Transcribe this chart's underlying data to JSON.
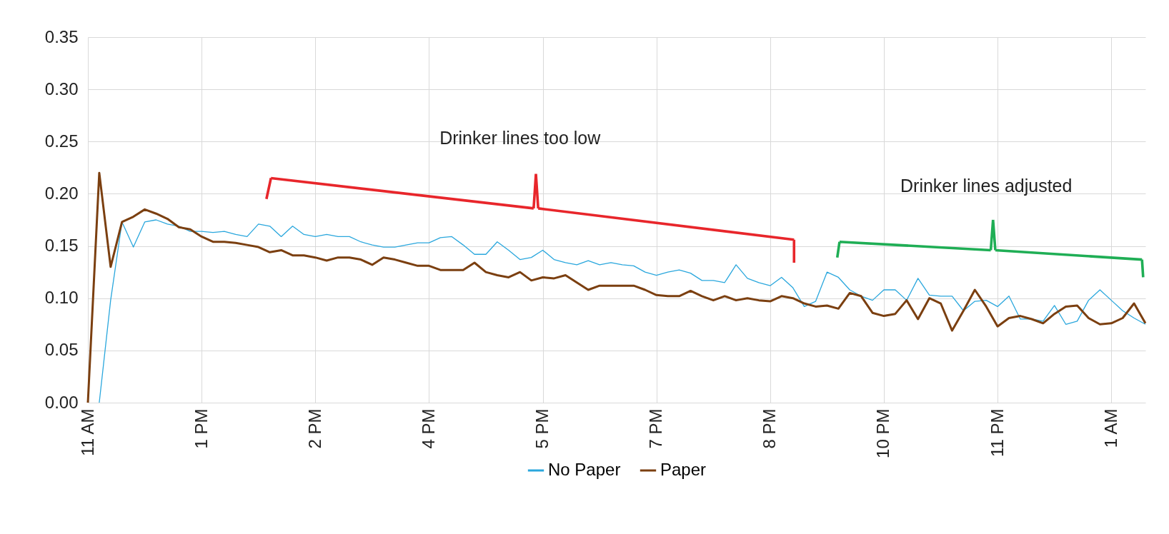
{
  "chart_data": {
    "type": "line",
    "categories": [
      "11 AM",
      null,
      null,
      null,
      null,
      null,
      null,
      null,
      null,
      null,
      "1 PM",
      null,
      null,
      null,
      null,
      null,
      null,
      null,
      null,
      null,
      "2 PM",
      null,
      null,
      null,
      null,
      null,
      null,
      null,
      null,
      null,
      "4 PM",
      null,
      null,
      null,
      null,
      null,
      null,
      null,
      null,
      null,
      "5 PM",
      null,
      null,
      null,
      null,
      null,
      null,
      null,
      null,
      null,
      "7 PM",
      null,
      null,
      null,
      null,
      null,
      null,
      null,
      null,
      null,
      "8 PM",
      null,
      null,
      null,
      null,
      null,
      null,
      null,
      null,
      null,
      "10 PM",
      null,
      null,
      null,
      null,
      null,
      null,
      null,
      null,
      null,
      "11 PM",
      null,
      null,
      null,
      null,
      null,
      null,
      null,
      null,
      null,
      "1 AM",
      null,
      null,
      null
    ],
    "series": [
      {
        "name": "No Paper",
        "color": "#2aa7dd",
        "values": [
          null,
          0,
          0.098,
          0.173,
          0.149,
          0.173,
          0.175,
          0.171,
          0.169,
          0.164,
          0.164,
          0.163,
          0.164,
          0.161,
          0.159,
          0.171,
          0.169,
          0.159,
          0.169,
          0.161,
          0.159,
          0.161,
          0.159,
          0.159,
          0.154,
          0.151,
          0.149,
          0.149,
          0.151,
          0.153,
          0.153,
          0.158,
          0.159,
          0.151,
          0.142,
          0.142,
          0.154,
          0.146,
          0.137,
          0.139,
          0.146,
          0.137,
          0.134,
          0.132,
          0.136,
          0.132,
          0.134,
          0.132,
          0.131,
          0.125,
          0.122,
          0.125,
          0.127,
          0.124,
          0.117,
          0.117,
          0.115,
          0.132,
          0.119,
          0.115,
          0.112,
          0.12,
          0.11,
          0.092,
          0.097,
          0.125,
          0.12,
          0.108,
          0.102,
          0.098,
          0.108,
          0.108,
          0.098,
          0.119,
          0.103,
          0.102,
          0.102,
          0.088,
          0.097,
          0.098,
          0.092,
          0.102,
          0.08,
          0.08,
          0.078,
          0.093,
          0.075,
          0.078,
          0.098,
          0.108,
          0.098,
          0.088,
          0.081,
          0.075
        ]
      },
      {
        "name": "Paper",
        "color": "#7b3f10",
        "values": [
          0,
          0.22,
          0.13,
          0.173,
          0.178,
          0.185,
          0.181,
          0.176,
          0.168,
          0.166,
          0.159,
          0.154,
          0.154,
          0.153,
          0.151,
          0.149,
          0.144,
          0.146,
          0.141,
          0.141,
          0.139,
          0.136,
          0.139,
          0.139,
          0.137,
          0.132,
          0.139,
          0.137,
          0.134,
          0.131,
          0.131,
          0.127,
          0.127,
          0.127,
          0.134,
          0.125,
          0.122,
          0.12,
          0.125,
          0.117,
          0.12,
          0.119,
          0.122,
          0.115,
          0.108,
          0.112,
          0.112,
          0.112,
          0.112,
          0.108,
          0.103,
          0.102,
          0.102,
          0.107,
          0.102,
          0.098,
          0.102,
          0.098,
          0.1,
          0.098,
          0.097,
          0.102,
          0.1,
          0.095,
          0.092,
          0.093,
          0.09,
          0.105,
          0.102,
          0.086,
          0.083,
          0.085,
          0.098,
          0.08,
          0.1,
          0.095,
          0.069,
          0.088,
          0.108,
          0.092,
          0.073,
          0.081,
          0.083,
          0.08,
          0.076,
          0.085,
          0.092,
          0.093,
          0.081,
          0.075,
          0.076,
          0.081,
          0.095,
          0.076
        ]
      }
    ],
    "ylim": [
      0,
      0.35
    ],
    "yticks": [
      {
        "value": 0,
        "label": "0.00"
      },
      {
        "value": 0.05,
        "label": "0.05"
      },
      {
        "value": 0.1,
        "label": "0.10"
      },
      {
        "value": 0.15,
        "label": "0.15"
      },
      {
        "value": 0.2,
        "label": "0.20"
      },
      {
        "value": 0.25,
        "label": "0.25"
      },
      {
        "value": 0.3,
        "label": "0.30"
      },
      {
        "value": 0.35,
        "label": "0.35"
      }
    ],
    "grid": true,
    "legend": "bottom",
    "annotations": [
      "Drinker lines too low",
      "Drinker lines adjusted"
    ]
  }
}
